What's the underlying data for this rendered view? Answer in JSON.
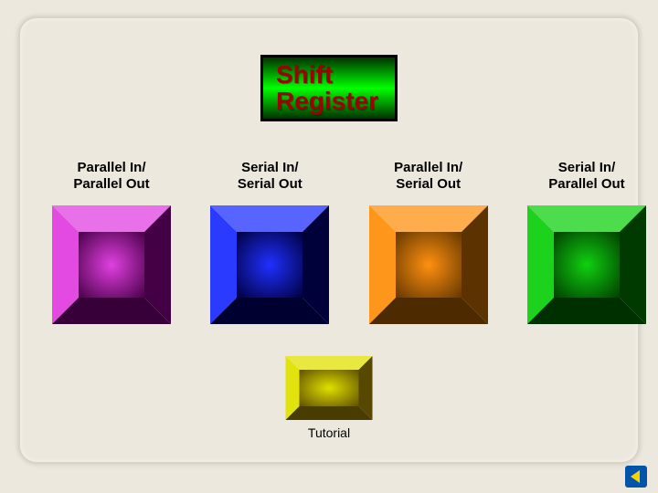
{
  "background_color": "#ece8de",
  "title": {
    "line1": "Shift",
    "line2": "Register",
    "text_color": "#a00000",
    "bg_gradient_from": "#003300",
    "bg_gradient_mid": "#00ff00",
    "bg_gradient_to": "#003300",
    "border_color": "#000000",
    "fontsize": 28
  },
  "columns": [
    {
      "label": "Parallel In/\nParallel Out",
      "button_color_light": "#e040e0",
      "button_color_dark": "#4b004b",
      "name": "parallel-in-parallel-out"
    },
    {
      "label": "Serial In/\nSerial Out",
      "button_color_light": "#2030ff",
      "button_color_dark": "#000040",
      "name": "serial-in-serial-out"
    },
    {
      "label": "Parallel In/\nSerial Out",
      "button_color_light": "#ff9010",
      "button_color_dark": "#663800",
      "name": "parallel-in-serial-out"
    },
    {
      "label": "Serial In/\nParallel Out",
      "button_color_light": "#10d010",
      "button_color_dark": "#004000",
      "name": "serial-in-parallel-out"
    }
  ],
  "tutorial": {
    "label": "Tutorial",
    "button_color_light": "#e0e000",
    "button_color_dark": "#605000"
  },
  "nav_icon": {
    "bg_color": "#0055aa",
    "triangle_color": "#ffd000",
    "name": "back-icon"
  },
  "label_fontsize": 15
}
